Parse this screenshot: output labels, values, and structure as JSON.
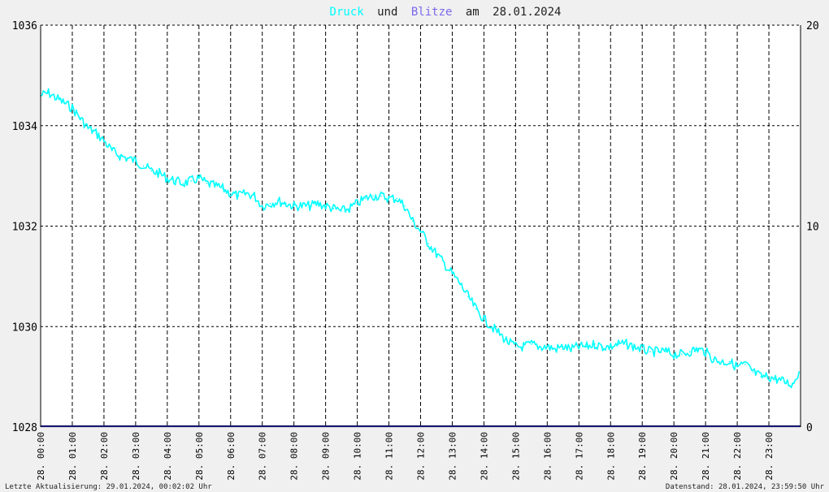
{
  "title": {
    "series1": "Druck",
    "joiner": "und",
    "series2": "Blitze",
    "prefix": "am",
    "date": "28.01.2024",
    "color_series1": "#00ffff",
    "color_series2": "#7b68ee",
    "color_text": "#222222"
  },
  "footer": {
    "left": "Letzte Aktualisierung: 29.01.2024, 00:02:02 Uhr",
    "right": "Datenstand: 28.01.2024, 23:59:50 Uhr"
  },
  "chart_data": {
    "type": "line",
    "grid": true,
    "y_left": {
      "ticks": [
        "1036",
        "1034",
        "1032",
        "1030",
        "1028"
      ],
      "range": [
        1028,
        1036
      ]
    },
    "y_right": {
      "ticks": [
        "20",
        "10",
        "0"
      ],
      "range": [
        0,
        20
      ]
    },
    "x_range": [
      0,
      24
    ],
    "x_ticks": [
      "28. 00:00",
      "28. 01:00",
      "28. 02:00",
      "28. 03:00",
      "28. 04:00",
      "28. 05:00",
      "28. 06:00",
      "28. 07:00",
      "28. 08:00",
      "28. 09:00",
      "28. 10:00",
      "28. 11:00",
      "28. 12:00",
      "28. 13:00",
      "28. 14:00",
      "28. 15:00",
      "28. 16:00",
      "28. 17:00",
      "28. 18:00",
      "28. 19:00",
      "28. 20:00",
      "28. 21:00",
      "28. 22:00",
      "28. 23:00"
    ],
    "series": [
      {
        "axis": "left",
        "color": "#00ffff",
        "x": [
          0,
          0.25,
          0.5,
          0.75,
          1.0,
          1.25,
          1.5,
          1.75,
          2.0,
          2.25,
          2.5,
          2.75,
          3.0,
          3.25,
          3.5,
          3.75,
          4.0,
          4.25,
          4.5,
          4.75,
          5.0,
          5.25,
          5.5,
          5.75,
          6.0,
          6.25,
          6.5,
          6.75,
          7.0,
          7.25,
          7.5,
          7.75,
          8.0,
          8.25,
          8.5,
          8.75,
          9.0,
          9.25,
          9.5,
          9.75,
          10.0,
          10.25,
          10.5,
          10.75,
          11.0,
          11.25,
          11.5,
          11.75,
          12.0,
          12.25,
          12.5,
          12.75,
          13.0,
          13.25,
          13.5,
          13.75,
          14.0,
          14.25,
          14.5,
          14.75,
          15.0,
          15.25,
          15.5,
          15.75,
          16.0,
          16.25,
          16.5,
          16.75,
          17.0,
          17.25,
          17.5,
          17.75,
          18.0,
          18.25,
          18.5,
          18.75,
          19.0,
          19.25,
          19.5,
          19.75,
          20.0,
          20.25,
          20.5,
          20.75,
          21.0,
          21.25,
          21.5,
          21.75,
          22.0,
          22.25,
          22.5,
          22.75,
          23.0,
          23.25,
          23.5,
          23.75,
          23.95
        ],
        "y": [
          1034.6,
          1034.65,
          1034.55,
          1034.45,
          1034.35,
          1034.15,
          1033.95,
          1033.85,
          1033.7,
          1033.5,
          1033.4,
          1033.35,
          1033.3,
          1033.2,
          1033.1,
          1033.05,
          1032.95,
          1032.9,
          1032.85,
          1032.9,
          1032.95,
          1032.85,
          1032.8,
          1032.75,
          1032.65,
          1032.6,
          1032.65,
          1032.6,
          1032.4,
          1032.45,
          1032.5,
          1032.45,
          1032.4,
          1032.4,
          1032.4,
          1032.45,
          1032.4,
          1032.35,
          1032.3,
          1032.35,
          1032.45,
          1032.55,
          1032.6,
          1032.6,
          1032.55,
          1032.55,
          1032.4,
          1032.1,
          1031.9,
          1031.65,
          1031.45,
          1031.25,
          1031.05,
          1030.85,
          1030.6,
          1030.35,
          1030.15,
          1030.0,
          1029.85,
          1029.7,
          1029.6,
          1029.6,
          1029.65,
          1029.6,
          1029.6,
          1029.55,
          1029.6,
          1029.55,
          1029.6,
          1029.6,
          1029.65,
          1029.6,
          1029.6,
          1029.65,
          1029.65,
          1029.6,
          1029.55,
          1029.5,
          1029.5,
          1029.5,
          1029.45,
          1029.45,
          1029.5,
          1029.55,
          1029.5,
          1029.35,
          1029.3,
          1029.3,
          1029.2,
          1029.25,
          1029.1,
          1029.0,
          1029.0,
          1028.95,
          1028.9,
          1028.85,
          1029.1
        ]
      },
      {
        "axis": "right",
        "color": "#191970",
        "x": [
          0,
          24
        ],
        "y": [
          0,
          0
        ]
      }
    ]
  }
}
